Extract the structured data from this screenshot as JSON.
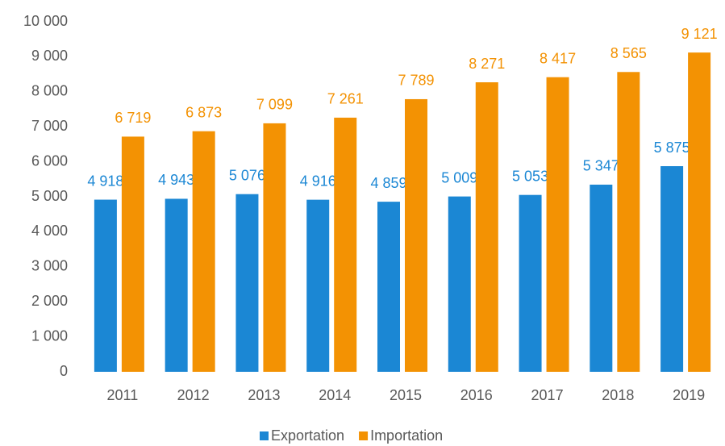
{
  "chart_data": {
    "type": "bar",
    "categories": [
      "2011",
      "2012",
      "2013",
      "2014",
      "2015",
      "2016",
      "2017",
      "2018",
      "2019"
    ],
    "series": [
      {
        "name": "Exportation",
        "color": "#1b87d4",
        "values": [
          4918,
          4943,
          5076,
          4916,
          4859,
          5009,
          5053,
          5347,
          5875
        ],
        "value_labels": [
          "4 918",
          "4 943",
          "5 076",
          "4 916",
          "4 859",
          "5 009",
          "5 053",
          "5 347",
          "5 875"
        ]
      },
      {
        "name": "Importation",
        "color": "#f39203",
        "values": [
          6719,
          6873,
          7099,
          7261,
          7789,
          8271,
          8417,
          8565,
          9121
        ],
        "value_labels": [
          "6 719",
          "6 873",
          "7 099",
          "7 261",
          "7 789",
          "8 271",
          "8 417",
          "8 565",
          "9 121"
        ]
      }
    ],
    "ylim": [
      0,
      10000
    ],
    "yticks": [
      0,
      {
        "value": 1000,
        "label": "1 000"
      },
      {
        "value": 2000,
        "label": "2 000"
      },
      {
        "value": 3000,
        "label": "3 000"
      },
      {
        "value": 4000,
        "label": "4 000"
      },
      {
        "value": 5000,
        "label": "5 000"
      },
      {
        "value": 6000,
        "label": "6 000"
      },
      {
        "value": 7000,
        "label": "7 000"
      },
      {
        "value": 8000,
        "label": "8 000"
      },
      {
        "value": 9000,
        "label": "9 000"
      },
      {
        "value": 10000,
        "label": "10 000"
      }
    ],
    "grid": false,
    "legend": "bottom"
  }
}
